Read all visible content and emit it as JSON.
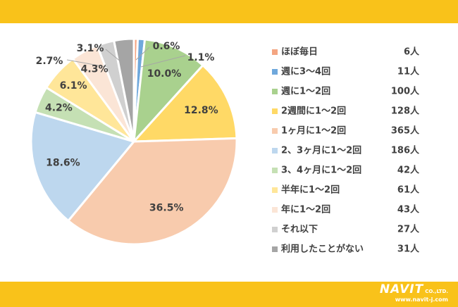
{
  "chart_data": {
    "type": "pie",
    "slices": [
      {
        "label": "ほぼ毎日",
        "count": "6人",
        "pct": 0.6,
        "pct_label": "0.6%",
        "color": "#f4a582"
      },
      {
        "label": "週に3～4回",
        "count": "11人",
        "pct": 1.1,
        "pct_label": "1.1%",
        "color": "#6fa8dc"
      },
      {
        "label": "週に1～2回",
        "count": "100人",
        "pct": 10.0,
        "pct_label": "10.0%",
        "color": "#a9d18e"
      },
      {
        "label": "2週間に1～2回",
        "count": "128人",
        "pct": 12.8,
        "pct_label": "12.8%",
        "color": "#ffd966"
      },
      {
        "label": "1ヶ月に1～2回",
        "count": "365人",
        "pct": 36.5,
        "pct_label": "36.5%",
        "color": "#f8cbad"
      },
      {
        "label": "2、3ヶ月に1～2回",
        "count": "186人",
        "pct": 18.6,
        "pct_label": "18.6%",
        "color": "#bdd7ee"
      },
      {
        "label": "3、4ヶ月に1～2回",
        "count": "42人",
        "pct": 4.2,
        "pct_label": "4.2%",
        "color": "#c5e0b4"
      },
      {
        "label": "半年に1～2回",
        "count": "61人",
        "pct": 6.1,
        "pct_label": "6.1%",
        "color": "#ffe699"
      },
      {
        "label": "年に1～2回",
        "count": "43人",
        "pct": 4.3,
        "pct_label": "4.3%",
        "color": "#fbe5d6"
      },
      {
        "label": "それ以下",
        "count": "27人",
        "pct": 2.7,
        "pct_label": "2.7%",
        "color": "#d0d0d0"
      },
      {
        "label": "利用したことがない",
        "count": "31人",
        "pct": 3.1,
        "pct_label": "3.1%",
        "color": "#a5a5a5"
      }
    ],
    "legend_position": "right"
  },
  "footer": {
    "logo_name": "NAVIT",
    "logo_suffix": "CO.,LTD.",
    "logo_url": "www.navit-j.com"
  }
}
